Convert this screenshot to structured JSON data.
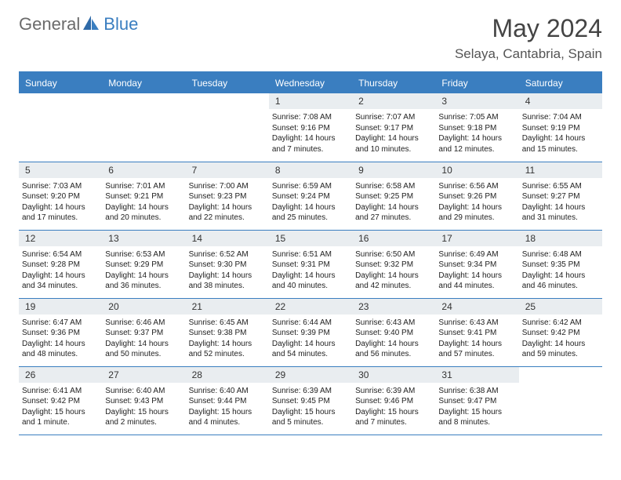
{
  "logo": {
    "part1": "General",
    "part2": "Blue"
  },
  "title": "May 2024",
  "location": "Selaya, Cantabria, Spain",
  "colors": {
    "header_bg": "#3a7ec0",
    "header_text": "#ffffff",
    "daynum_bg": "#e9edf0",
    "text": "#222222",
    "title_color": "#444444",
    "location_color": "#555555",
    "logo_gray": "#6b6b6b",
    "logo_blue": "#3a7ec0",
    "border": "#3a7ec0",
    "page_bg": "#ffffff"
  },
  "typography": {
    "month_title_pt": 32,
    "location_pt": 17,
    "weekday_pt": 12,
    "daynum_pt": 12,
    "body_pt": 10
  },
  "weekdays": [
    "Sunday",
    "Monday",
    "Tuesday",
    "Wednesday",
    "Thursday",
    "Friday",
    "Saturday"
  ],
  "weeks": [
    [
      {
        "n": "",
        "lines": []
      },
      {
        "n": "",
        "lines": []
      },
      {
        "n": "",
        "lines": []
      },
      {
        "n": "1",
        "lines": [
          "Sunrise: 7:08 AM",
          "Sunset: 9:16 PM",
          "Daylight: 14 hours",
          "and 7 minutes."
        ]
      },
      {
        "n": "2",
        "lines": [
          "Sunrise: 7:07 AM",
          "Sunset: 9:17 PM",
          "Daylight: 14 hours",
          "and 10 minutes."
        ]
      },
      {
        "n": "3",
        "lines": [
          "Sunrise: 7:05 AM",
          "Sunset: 9:18 PM",
          "Daylight: 14 hours",
          "and 12 minutes."
        ]
      },
      {
        "n": "4",
        "lines": [
          "Sunrise: 7:04 AM",
          "Sunset: 9:19 PM",
          "Daylight: 14 hours",
          "and 15 minutes."
        ]
      }
    ],
    [
      {
        "n": "5",
        "lines": [
          "Sunrise: 7:03 AM",
          "Sunset: 9:20 PM",
          "Daylight: 14 hours",
          "and 17 minutes."
        ]
      },
      {
        "n": "6",
        "lines": [
          "Sunrise: 7:01 AM",
          "Sunset: 9:21 PM",
          "Daylight: 14 hours",
          "and 20 minutes."
        ]
      },
      {
        "n": "7",
        "lines": [
          "Sunrise: 7:00 AM",
          "Sunset: 9:23 PM",
          "Daylight: 14 hours",
          "and 22 minutes."
        ]
      },
      {
        "n": "8",
        "lines": [
          "Sunrise: 6:59 AM",
          "Sunset: 9:24 PM",
          "Daylight: 14 hours",
          "and 25 minutes."
        ]
      },
      {
        "n": "9",
        "lines": [
          "Sunrise: 6:58 AM",
          "Sunset: 9:25 PM",
          "Daylight: 14 hours",
          "and 27 minutes."
        ]
      },
      {
        "n": "10",
        "lines": [
          "Sunrise: 6:56 AM",
          "Sunset: 9:26 PM",
          "Daylight: 14 hours",
          "and 29 minutes."
        ]
      },
      {
        "n": "11",
        "lines": [
          "Sunrise: 6:55 AM",
          "Sunset: 9:27 PM",
          "Daylight: 14 hours",
          "and 31 minutes."
        ]
      }
    ],
    [
      {
        "n": "12",
        "lines": [
          "Sunrise: 6:54 AM",
          "Sunset: 9:28 PM",
          "Daylight: 14 hours",
          "and 34 minutes."
        ]
      },
      {
        "n": "13",
        "lines": [
          "Sunrise: 6:53 AM",
          "Sunset: 9:29 PM",
          "Daylight: 14 hours",
          "and 36 minutes."
        ]
      },
      {
        "n": "14",
        "lines": [
          "Sunrise: 6:52 AM",
          "Sunset: 9:30 PM",
          "Daylight: 14 hours",
          "and 38 minutes."
        ]
      },
      {
        "n": "15",
        "lines": [
          "Sunrise: 6:51 AM",
          "Sunset: 9:31 PM",
          "Daylight: 14 hours",
          "and 40 minutes."
        ]
      },
      {
        "n": "16",
        "lines": [
          "Sunrise: 6:50 AM",
          "Sunset: 9:32 PM",
          "Daylight: 14 hours",
          "and 42 minutes."
        ]
      },
      {
        "n": "17",
        "lines": [
          "Sunrise: 6:49 AM",
          "Sunset: 9:34 PM",
          "Daylight: 14 hours",
          "and 44 minutes."
        ]
      },
      {
        "n": "18",
        "lines": [
          "Sunrise: 6:48 AM",
          "Sunset: 9:35 PM",
          "Daylight: 14 hours",
          "and 46 minutes."
        ]
      }
    ],
    [
      {
        "n": "19",
        "lines": [
          "Sunrise: 6:47 AM",
          "Sunset: 9:36 PM",
          "Daylight: 14 hours",
          "and 48 minutes."
        ]
      },
      {
        "n": "20",
        "lines": [
          "Sunrise: 6:46 AM",
          "Sunset: 9:37 PM",
          "Daylight: 14 hours",
          "and 50 minutes."
        ]
      },
      {
        "n": "21",
        "lines": [
          "Sunrise: 6:45 AM",
          "Sunset: 9:38 PM",
          "Daylight: 14 hours",
          "and 52 minutes."
        ]
      },
      {
        "n": "22",
        "lines": [
          "Sunrise: 6:44 AM",
          "Sunset: 9:39 PM",
          "Daylight: 14 hours",
          "and 54 minutes."
        ]
      },
      {
        "n": "23",
        "lines": [
          "Sunrise: 6:43 AM",
          "Sunset: 9:40 PM",
          "Daylight: 14 hours",
          "and 56 minutes."
        ]
      },
      {
        "n": "24",
        "lines": [
          "Sunrise: 6:43 AM",
          "Sunset: 9:41 PM",
          "Daylight: 14 hours",
          "and 57 minutes."
        ]
      },
      {
        "n": "25",
        "lines": [
          "Sunrise: 6:42 AM",
          "Sunset: 9:42 PM",
          "Daylight: 14 hours",
          "and 59 minutes."
        ]
      }
    ],
    [
      {
        "n": "26",
        "lines": [
          "Sunrise: 6:41 AM",
          "Sunset: 9:42 PM",
          "Daylight: 15 hours",
          "and 1 minute."
        ]
      },
      {
        "n": "27",
        "lines": [
          "Sunrise: 6:40 AM",
          "Sunset: 9:43 PM",
          "Daylight: 15 hours",
          "and 2 minutes."
        ]
      },
      {
        "n": "28",
        "lines": [
          "Sunrise: 6:40 AM",
          "Sunset: 9:44 PM",
          "Daylight: 15 hours",
          "and 4 minutes."
        ]
      },
      {
        "n": "29",
        "lines": [
          "Sunrise: 6:39 AM",
          "Sunset: 9:45 PM",
          "Daylight: 15 hours",
          "and 5 minutes."
        ]
      },
      {
        "n": "30",
        "lines": [
          "Sunrise: 6:39 AM",
          "Sunset: 9:46 PM",
          "Daylight: 15 hours",
          "and 7 minutes."
        ]
      },
      {
        "n": "31",
        "lines": [
          "Sunrise: 6:38 AM",
          "Sunset: 9:47 PM",
          "Daylight: 15 hours",
          "and 8 minutes."
        ]
      },
      {
        "n": "",
        "lines": []
      }
    ]
  ]
}
